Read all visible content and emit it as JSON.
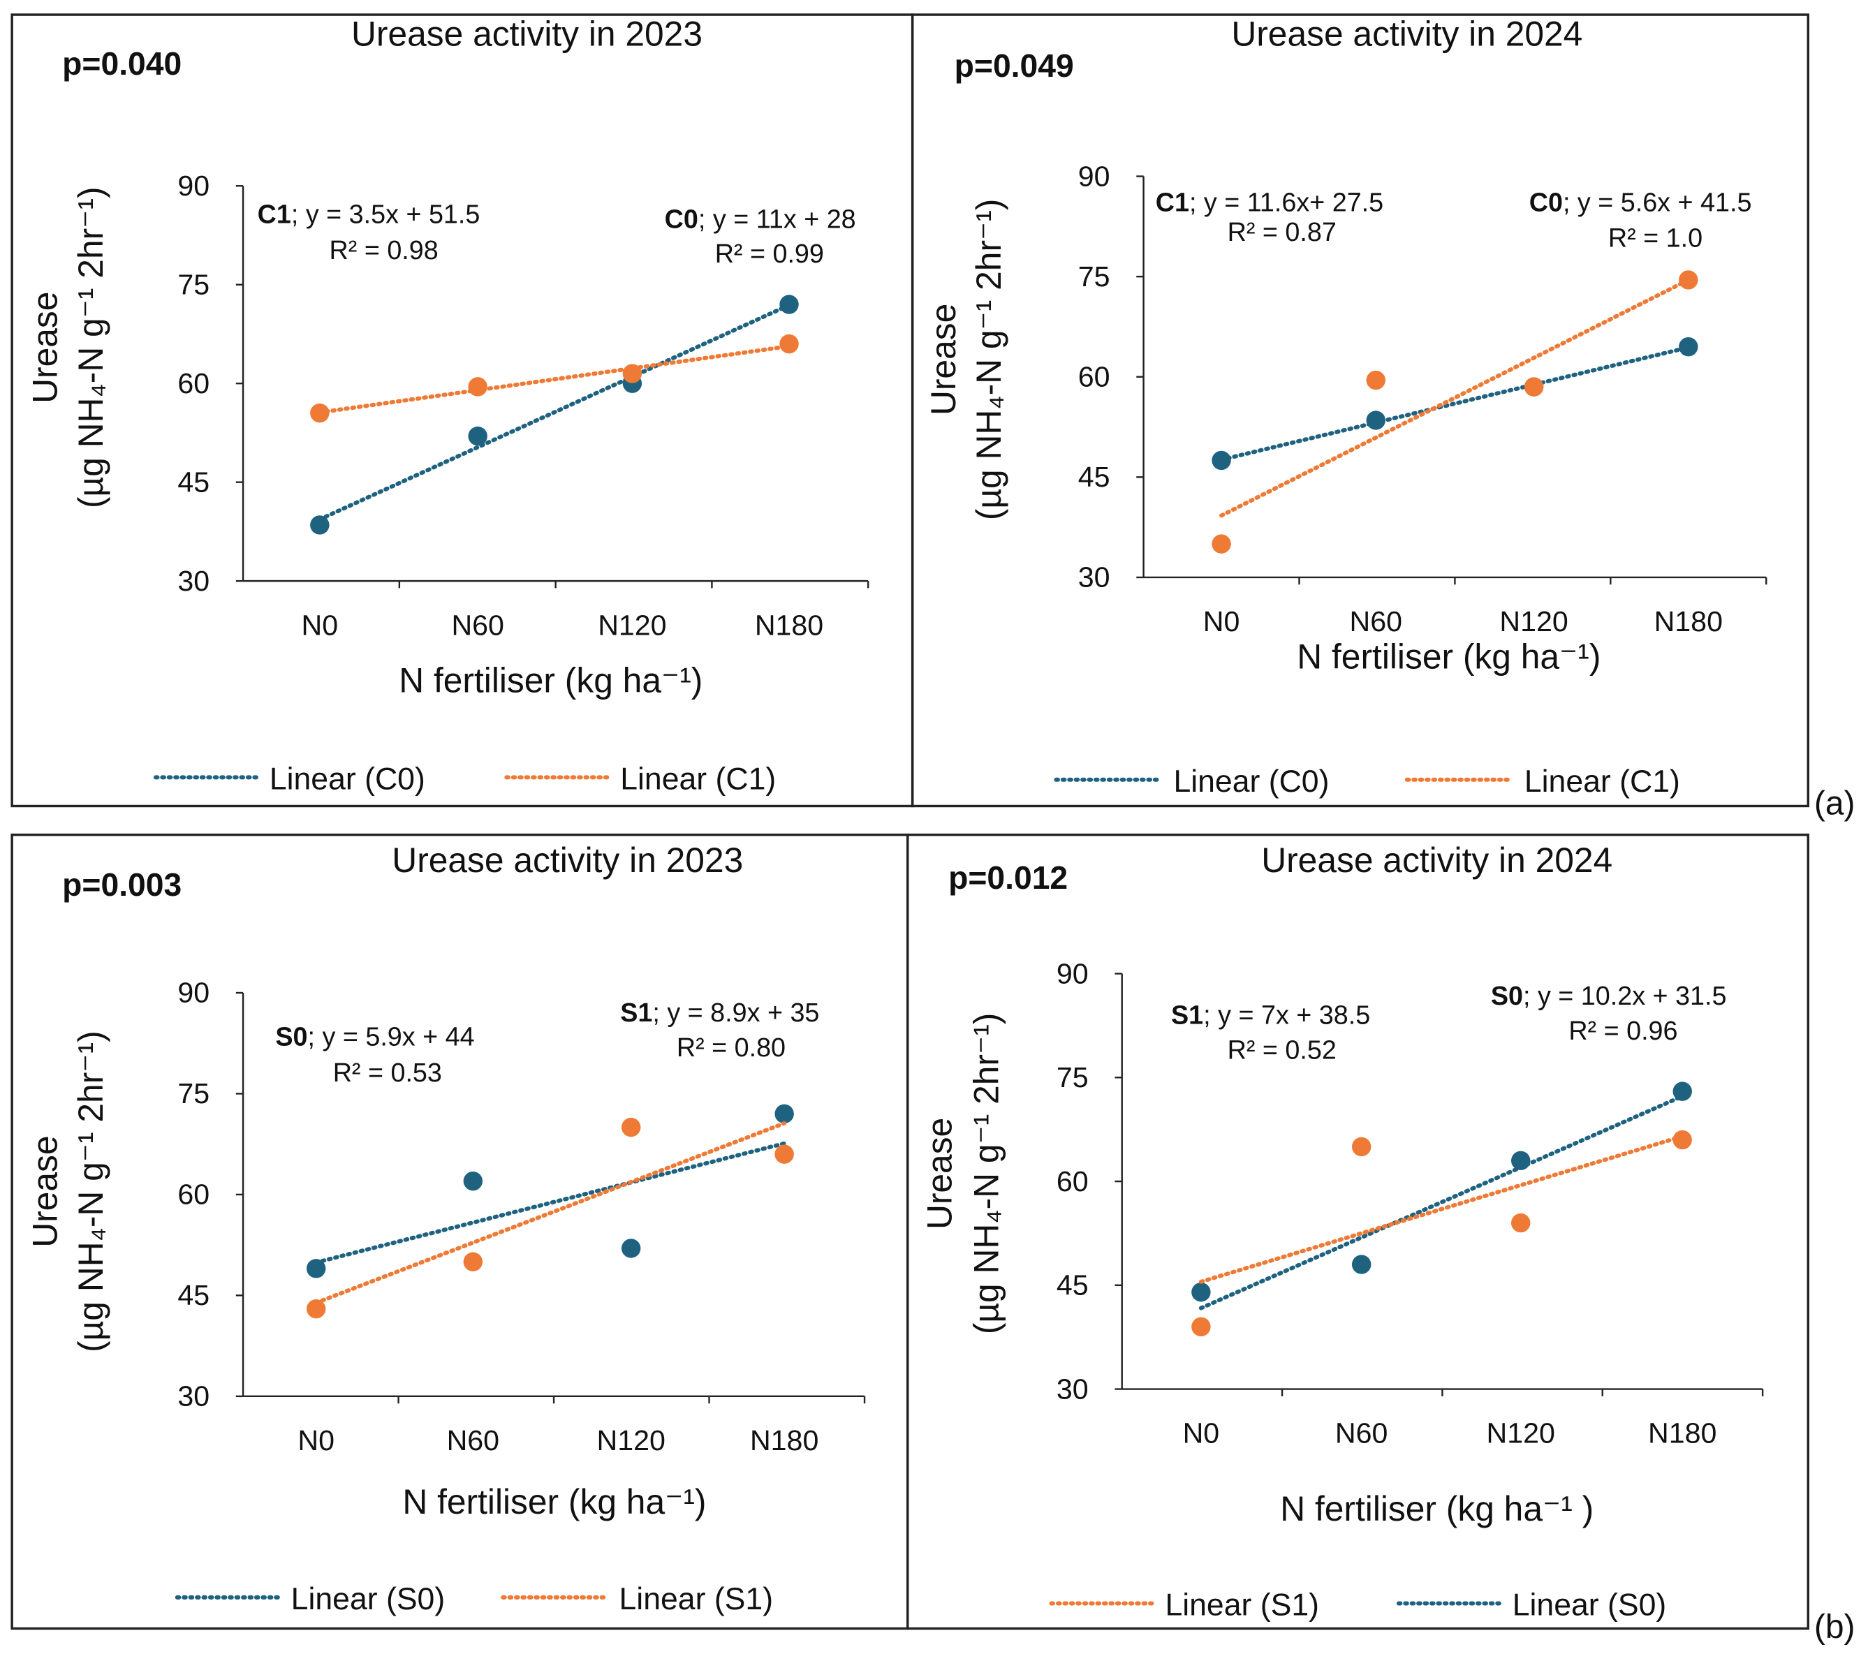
{
  "colors": {
    "blue": "#1f6280",
    "orange": "#ee7a35"
  },
  "figure_tags": [
    "(a)",
    "(b)"
  ],
  "chart_data": [
    {
      "type": "scatter",
      "title": "Urease activity in 2023",
      "p_value": "p=0.040",
      "xlabel": "N fertiliser (kg ha⁻¹)",
      "ylabel": [
        "Urease",
        "(µg NH₄-N g⁻¹ 2hr⁻¹)"
      ],
      "categories": [
        "N0",
        "N60",
        "N120",
        "N180"
      ],
      "ylim": [
        30,
        90
      ],
      "yticks": [
        "30",
        "45",
        "60",
        "75",
        "90"
      ],
      "series": [
        {
          "name": "C0",
          "color": "blue",
          "values": [
            38.5,
            52,
            60,
            72
          ]
        },
        {
          "name": "C1",
          "color": "orange",
          "values": [
            55.5,
            59.5,
            61.5,
            66
          ]
        }
      ],
      "legend": [
        {
          "label": "Linear (C0)",
          "color": "blue"
        },
        {
          "label": "Linear (C1)",
          "color": "orange"
        }
      ],
      "equations": [
        {
          "name": "C1",
          "eq": "; y = 3.5x + 51.5",
          "r2": "R² = 0.98"
        },
        {
          "name": "C0",
          "eq": "; y = 11x + 28",
          "r2": "R² = 0.99"
        }
      ]
    },
    {
      "type": "scatter",
      "title": "Urease activity in 2024",
      "p_value": "p=0.049",
      "xlabel": "N fertiliser (kg ha⁻¹)",
      "ylabel": [
        "Urease",
        "(µg NH₄-N g⁻¹ 2hr⁻¹)"
      ],
      "categories": [
        "N0",
        "N60",
        "N120",
        "N180"
      ],
      "ylim": [
        30,
        90
      ],
      "yticks": [
        "30",
        "45",
        "60",
        "75",
        "90"
      ],
      "series": [
        {
          "name": "C0",
          "color": "blue",
          "values": [
            47.5,
            53.5,
            58.5,
            64.5
          ]
        },
        {
          "name": "C1",
          "color": "orange",
          "values": [
            35,
            59.5,
            58.5,
            74.5
          ]
        }
      ],
      "legend": [
        {
          "label": "Linear (C0)",
          "color": "blue"
        },
        {
          "label": "Linear (C1)",
          "color": "orange"
        }
      ],
      "equations": [
        {
          "name": "C1",
          "eq": "; y = 11.6x+ 27.5",
          "r2": "R² = 0.87"
        },
        {
          "name": "C0",
          "eq": "; y = 5.6x + 41.5",
          "r2": "R² = 1.0"
        }
      ]
    },
    {
      "type": "scatter",
      "title": "Urease activity in 2023",
      "p_value": "p=0.003",
      "xlabel": "N fertiliser (kg ha⁻¹)",
      "ylabel": [
        "Urease",
        "(µg NH₄-N g⁻¹ 2hr⁻¹)"
      ],
      "categories": [
        "N0",
        "N60",
        "N120",
        "N180"
      ],
      "ylim": [
        30,
        90
      ],
      "yticks": [
        "30",
        "45",
        "60",
        "75",
        "90"
      ],
      "series": [
        {
          "name": "S0",
          "color": "blue",
          "values": [
            49,
            62,
            52,
            72
          ]
        },
        {
          "name": "S1",
          "color": "orange",
          "values": [
            43,
            50,
            70,
            66
          ]
        }
      ],
      "legend": [
        {
          "label": "Linear (S0)",
          "color": "blue"
        },
        {
          "label": "Linear (S1)",
          "color": "orange"
        }
      ],
      "equations": [
        {
          "name": "S0",
          "eq": "; y = 5.9x + 44",
          "r2": "R² = 0.53"
        },
        {
          "name": "S1",
          "eq": "; y = 8.9x + 35",
          "r2": "R² = 0.80"
        }
      ]
    },
    {
      "type": "scatter",
      "title": "Urease activity in 2024",
      "p_value": "p=0.012",
      "xlabel": "N fertiliser (kg ha⁻¹ )",
      "ylabel": [
        "Urease",
        "(µg NH₄-N g⁻¹ 2hr⁻¹)"
      ],
      "categories": [
        "N0",
        "N60",
        "N120",
        "N180"
      ],
      "ylim": [
        30,
        90
      ],
      "yticks": [
        "30",
        "45",
        "60",
        "75",
        "90"
      ],
      "series": [
        {
          "name": "S0",
          "color": "blue",
          "values": [
            44,
            48,
            63,
            73
          ]
        },
        {
          "name": "S1",
          "color": "orange",
          "values": [
            39,
            65,
            54,
            66
          ]
        }
      ],
      "legend": [
        {
          "label": "Linear (S1)",
          "color": "orange"
        },
        {
          "label": "Linear (S0)",
          "color": "blue"
        }
      ],
      "equations": [
        {
          "name": "S1",
          "eq": "; y = 7x + 38.5",
          "r2": "R² = 0.52"
        },
        {
          "name": "S0",
          "eq": "; y = 10.2x + 31.5",
          "r2": "R² = 0.96"
        }
      ]
    }
  ]
}
